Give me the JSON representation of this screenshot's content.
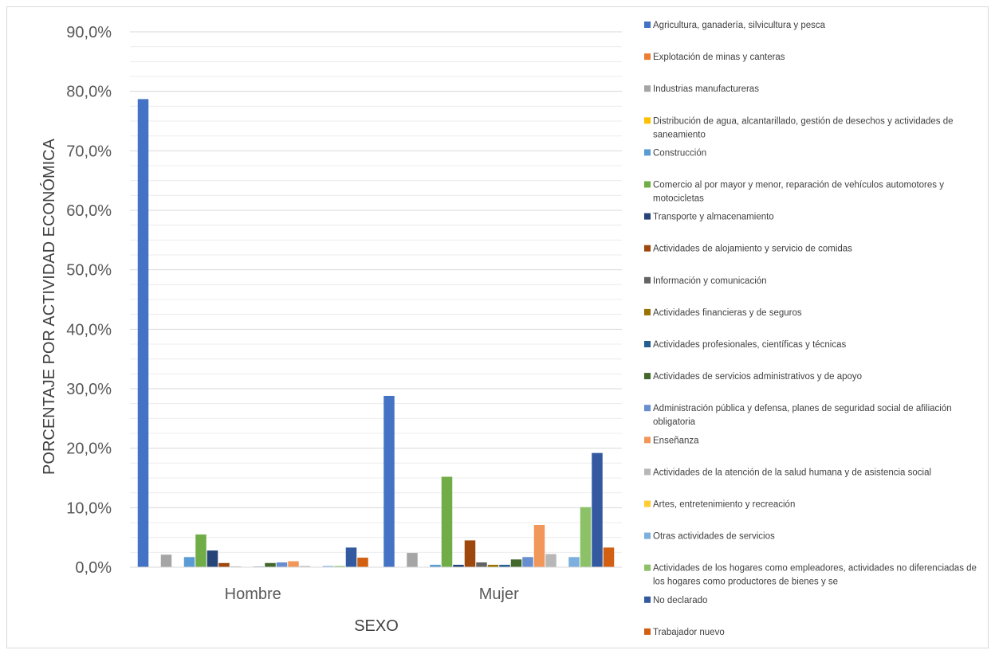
{
  "chart_data": {
    "type": "bar",
    "title": "",
    "xlabel": "SEXO",
    "ylabel": "PORCENTAJE POR ACTIVIDAD ECONÓMICA",
    "ylim": [
      0,
      90
    ],
    "yticks": [
      "0,0%",
      "10,0%",
      "20,0%",
      "30,0%",
      "40,0%",
      "50,0%",
      "60,0%",
      "70,0%",
      "80,0%",
      "90,0%"
    ],
    "grid": true,
    "legend_position": "right",
    "categories": [
      "Hombre",
      "Mujer"
    ],
    "series": [
      {
        "name": "Agricultura, ganadería, silvicultura y pesca",
        "color": "#4472C4",
        "values": [
          78.7,
          28.8
        ]
      },
      {
        "name": "Explotación de minas y canteras",
        "color": "#ED7D31",
        "values": [
          0.0,
          0.0
        ]
      },
      {
        "name": "Industrias manufactureras",
        "color": "#A5A5A5",
        "values": [
          2.1,
          2.4
        ]
      },
      {
        "name": "Distribución de agua, alcantarillado, gestión de desechos y actividades de saneamiento",
        "color": "#FFC000",
        "values": [
          0.0,
          0.0
        ]
      },
      {
        "name": "Construcción",
        "color": "#5B9BD5",
        "values": [
          1.7,
          0.4
        ]
      },
      {
        "name": "Comercio al por mayor y menor, reparación de vehículos automotores y motocicletas",
        "color": "#70AD47",
        "values": [
          5.5,
          15.2
        ]
      },
      {
        "name": "Transporte y almacenamiento",
        "color": "#264478",
        "values": [
          2.8,
          0.4
        ]
      },
      {
        "name": "Actividades de alojamiento y servicio de comidas",
        "color": "#9E480E",
        "values": [
          0.7,
          4.5
        ]
      },
      {
        "name": "Información y comunicación",
        "color": "#636363",
        "values": [
          0.1,
          0.8
        ]
      },
      {
        "name": "Actividades financieras y de seguros",
        "color": "#997300",
        "values": [
          0.0,
          0.4
        ]
      },
      {
        "name": "Actividades profesionales, científicas y técnicas",
        "color": "#255E91",
        "values": [
          0.1,
          0.4
        ]
      },
      {
        "name": "Actividades de servicios administrativos y de apoyo",
        "color": "#43682B",
        "values": [
          0.7,
          1.3
        ]
      },
      {
        "name": "Administración pública y defensa, planes de seguridad social de afiliación obligatoria",
        "color": "#698ED0",
        "values": [
          0.8,
          1.7
        ]
      },
      {
        "name": "Enseñanza",
        "color": "#F1975A",
        "values": [
          1.0,
          7.1
        ]
      },
      {
        "name": "Actividades de la atención de la salud humana y de asistencia social",
        "color": "#B7B7B7",
        "values": [
          0.2,
          2.2
        ]
      },
      {
        "name": "Artes, entretenimiento y recreación",
        "color": "#FFCD33",
        "values": [
          0.0,
          0.0
        ]
      },
      {
        "name": "Otras actividades de servicios",
        "color": "#7CAFDD",
        "values": [
          0.2,
          1.7
        ]
      },
      {
        "name": "Actividades de los hogares como empleadores, actividades no diferenciadas de los hogares como productores de bienes y se",
        "color": "#8CC168",
        "values": [
          0.2,
          10.1
        ]
      },
      {
        "name": "No declarado",
        "color": "#335AA1",
        "values": [
          3.3,
          19.2
        ]
      },
      {
        "name": "Trabajador nuevo",
        "color": "#D26012",
        "values": [
          1.6,
          3.3
        ]
      }
    ]
  }
}
